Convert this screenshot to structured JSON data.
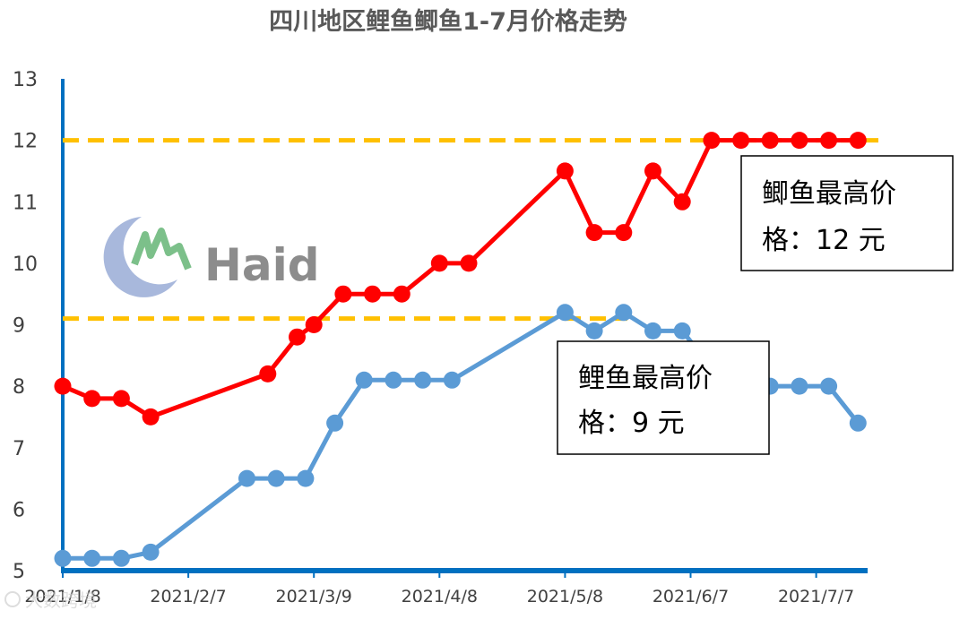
{
  "chart_data": {
    "type": "line",
    "title": "四川地区鲤鱼鲫鱼1-7月价格走势",
    "xlabel": "",
    "ylabel": "",
    "ylim": [
      5,
      13
    ],
    "y_ticks": [
      "5",
      "6",
      "7",
      "8",
      "9",
      "10",
      "11",
      "12",
      "13"
    ],
    "x_tick_labels": [
      "2021/1/8",
      "2021/2/7",
      "2021/3/9",
      "2021/4/8",
      "2021/5/8",
      "2021/6/7",
      "2021/7/7"
    ],
    "x_ticks_days": [
      0,
      30,
      60,
      90,
      120,
      150,
      180
    ],
    "x_range_days": [
      0,
      194
    ],
    "grid": false,
    "legend": "none",
    "series": [
      {
        "color": "#ff0000",
        "x": [
          "2021/1/8",
          "2021/1/15",
          "2021/1/22",
          "2021/1/29",
          "2021/2/26",
          "2021/3/5",
          "2021/3/9",
          "2021/3/16",
          "2021/3/23",
          "2021/3/30",
          "2021/4/8",
          "2021/4/15",
          "2021/5/8",
          "2021/5/15",
          "2021/5/22",
          "2021/5/29",
          "2021/6/5",
          "2021/6/12",
          "2021/6/19",
          "2021/6/26",
          "2021/7/3",
          "2021/7/10",
          "2021/7/17"
        ],
        "values": [
          8.0,
          7.8,
          7.8,
          7.5,
          8.2,
          8.8,
          9.0,
          9.5,
          9.5,
          9.5,
          10.0,
          10.0,
          11.5,
          10.5,
          10.5,
          11.5,
          11.0,
          12.0,
          12.0,
          12.0,
          12.0,
          12.0,
          12.0
        ]
      },
      {
        "color": "#5b9bd5",
        "x": [
          "2021/1/8",
          "2021/1/15",
          "2021/1/22",
          "2021/1/29",
          "2021/2/21",
          "2021/2/28",
          "2021/3/7",
          "2021/3/14",
          "2021/3/21",
          "2021/3/28",
          "2021/4/4",
          "2021/4/11",
          "2021/5/8",
          "2021/5/15",
          "2021/5/22",
          "2021/5/29",
          "2021/6/5",
          "2021/6/12",
          "2021/6/19",
          "2021/6/26",
          "2021/7/3",
          "2021/7/10",
          "2021/7/17"
        ],
        "values": [
          5.2,
          5.2,
          5.2,
          5.3,
          6.5,
          6.5,
          6.5,
          7.4,
          8.1,
          8.1,
          8.1,
          8.1,
          9.2,
          8.9,
          9.2,
          8.9,
          8.9,
          8.3,
          8.0,
          8.0,
          8.0,
          8.0,
          7.4
        ]
      }
    ],
    "reference_lines": [
      {
        "y": 12,
        "color": "#ffc000"
      },
      {
        "y": 9.1,
        "color": "#ffc000"
      }
    ],
    "annotations": [
      {
        "lines": [
          "鲫鱼最高价",
          "格：12 元"
        ]
      },
      {
        "lines": [
          "鲤鱼最高价",
          "格：9 元"
        ]
      }
    ]
  },
  "logo": {
    "text": "Haid"
  },
  "watermark": {
    "text": "大数跨境"
  }
}
